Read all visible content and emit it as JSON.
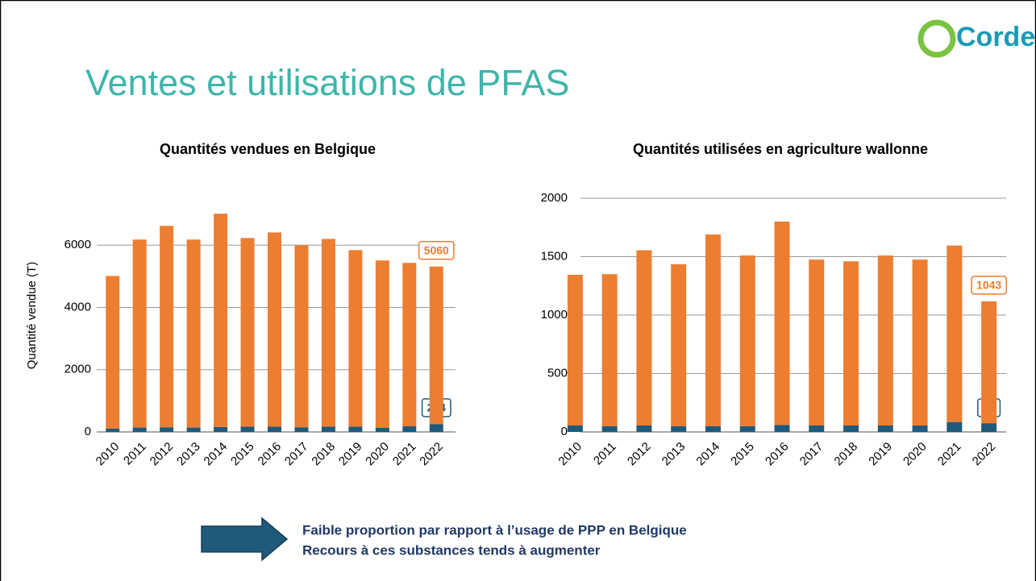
{
  "slide_title": "Ventes et utilisations de PFAS",
  "logo": "Corder",
  "chart_data": [
    {
      "type": "bar",
      "stacked": true,
      "title": "Quantités vendues en Belgique",
      "y_label": "Quantité vendue (T)",
      "categories": [
        "2010",
        "2011",
        "2012",
        "2013",
        "2014",
        "2015",
        "2016",
        "2017",
        "2018",
        "2019",
        "2020",
        "2021",
        "2022"
      ],
      "series": [
        {
          "color": "#1f5a7a",
          "values": [
            110,
            140,
            150,
            140,
            160,
            170,
            170,
            150,
            170,
            170,
            130,
            180,
            254
          ]
        },
        {
          "color": "#ed7d31",
          "values": [
            4900,
            6040,
            6470,
            6040,
            6850,
            6060,
            6240,
            5850,
            6030,
            5670,
            5380,
            5250,
            5060
          ]
        }
      ],
      "ylim": [
        0,
        8000
      ],
      "yticks": [
        0,
        2000,
        4000,
        6000
      ],
      "grid": true
    },
    {
      "type": "bar",
      "stacked": true,
      "title": "Quantités utilisées en agriculture wallonne",
      "categories": [
        "2010",
        "2011",
        "2012",
        "2013",
        "2014",
        "2015",
        "2016",
        "2017",
        "2018",
        "2019",
        "2020",
        "2021",
        "2022"
      ],
      "series": [
        {
          "color": "#1f5a7a",
          "values": [
            55,
            50,
            55,
            50,
            50,
            50,
            60,
            55,
            55,
            55,
            55,
            85,
            75
          ]
        },
        {
          "color": "#ed7d31",
          "values": [
            1290,
            1300,
            1500,
            1385,
            1640,
            1460,
            1740,
            1420,
            1405,
            1455,
            1420,
            1510,
            1043
          ]
        }
      ],
      "ylim": [
        0,
        2000
      ],
      "yticks": [
        0,
        500,
        1000,
        1500,
        2000
      ],
      "grid": true
    }
  ],
  "notes": [
    "Faible proportion par rapport à l’usage de PPP en Belgique",
    "Recours à ces substances tends à augmenter"
  ]
}
